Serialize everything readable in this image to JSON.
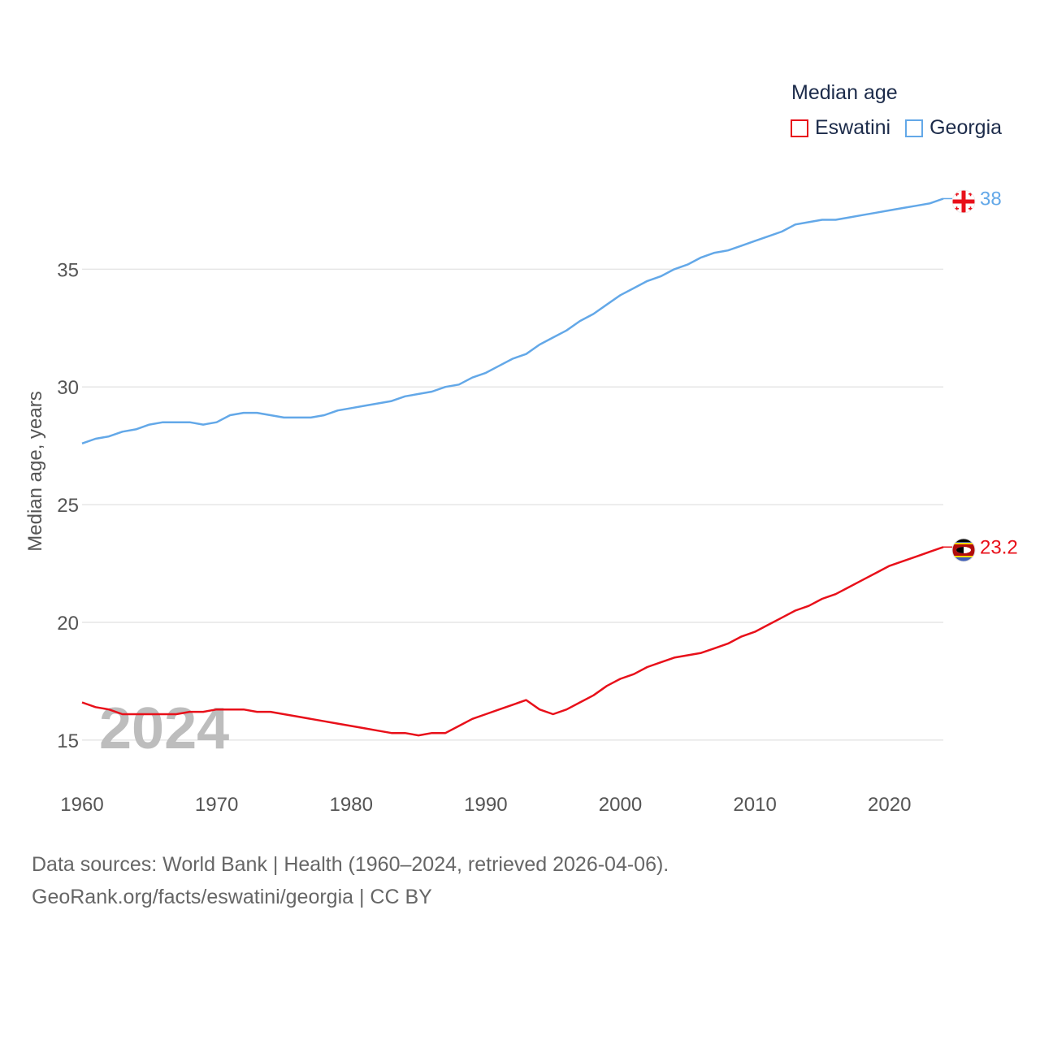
{
  "chart_data": {
    "type": "line",
    "ylabel": "Median age, years",
    "xlim": [
      1960,
      2024
    ],
    "ylim": [
      13.2,
      39.5
    ],
    "yticks": [
      15,
      20,
      25,
      30,
      35
    ],
    "xticks": [
      1960,
      1970,
      1980,
      1990,
      2000,
      2010,
      2020
    ],
    "year_label": "2024",
    "legend_title": "Median age",
    "x": [
      1960,
      1961,
      1962,
      1963,
      1964,
      1965,
      1966,
      1967,
      1968,
      1969,
      1970,
      1971,
      1972,
      1973,
      1974,
      1975,
      1976,
      1977,
      1978,
      1979,
      1980,
      1981,
      1982,
      1983,
      1984,
      1985,
      1986,
      1987,
      1988,
      1989,
      1990,
      1991,
      1992,
      1993,
      1994,
      1995,
      1996,
      1997,
      1998,
      1999,
      2000,
      2001,
      2002,
      2003,
      2004,
      2005,
      2006,
      2007,
      2008,
      2009,
      2010,
      2011,
      2012,
      2013,
      2014,
      2015,
      2016,
      2017,
      2018,
      2019,
      2020,
      2021,
      2022,
      2023,
      2024
    ],
    "series": [
      {
        "name": "Eswatini",
        "color": "#e8101a",
        "end_label": "23.2",
        "values": [
          16.6,
          16.4,
          16.3,
          16.1,
          16.1,
          16.1,
          16.1,
          16.1,
          16.2,
          16.2,
          16.3,
          16.3,
          16.3,
          16.2,
          16.2,
          16.1,
          16.0,
          15.9,
          15.8,
          15.7,
          15.6,
          15.5,
          15.4,
          15.3,
          15.3,
          15.2,
          15.3,
          15.3,
          15.6,
          15.9,
          16.1,
          16.3,
          16.5,
          16.7,
          16.3,
          16.1,
          16.3,
          16.6,
          16.9,
          17.3,
          17.6,
          17.8,
          18.1,
          18.3,
          18.5,
          18.6,
          18.7,
          18.9,
          19.1,
          19.4,
          19.6,
          19.9,
          20.2,
          20.5,
          20.7,
          21.0,
          21.2,
          21.5,
          21.8,
          22.1,
          22.4,
          22.6,
          22.8,
          23.0,
          23.2
        ]
      },
      {
        "name": "Georgia",
        "color": "#63a8e8",
        "end_label": "38",
        "values": [
          27.6,
          27.8,
          27.9,
          28.1,
          28.2,
          28.4,
          28.5,
          28.5,
          28.5,
          28.4,
          28.5,
          28.8,
          28.9,
          28.9,
          28.8,
          28.7,
          28.7,
          28.7,
          28.8,
          29.0,
          29.1,
          29.2,
          29.3,
          29.4,
          29.6,
          29.7,
          29.8,
          30.0,
          30.1,
          30.4,
          30.6,
          30.9,
          31.2,
          31.4,
          31.8,
          32.1,
          32.4,
          32.8,
          33.1,
          33.5,
          33.9,
          34.2,
          34.5,
          34.7,
          35.0,
          35.2,
          35.5,
          35.7,
          35.8,
          36.0,
          36.2,
          36.4,
          36.6,
          36.9,
          37.0,
          37.1,
          37.1,
          37.2,
          37.3,
          37.4,
          37.5,
          37.6,
          37.7,
          37.8,
          38.0
        ]
      }
    ]
  },
  "footer": {
    "line1": "Data sources: World Bank | Health (1960–2024, retrieved 2026-04-06).",
    "line2": "GeoRank.org/facts/eswatini/georgia | CC BY"
  },
  "flags": {
    "eswatini": "eswatini-flag-icon",
    "georgia": "georgia-flag-icon"
  }
}
